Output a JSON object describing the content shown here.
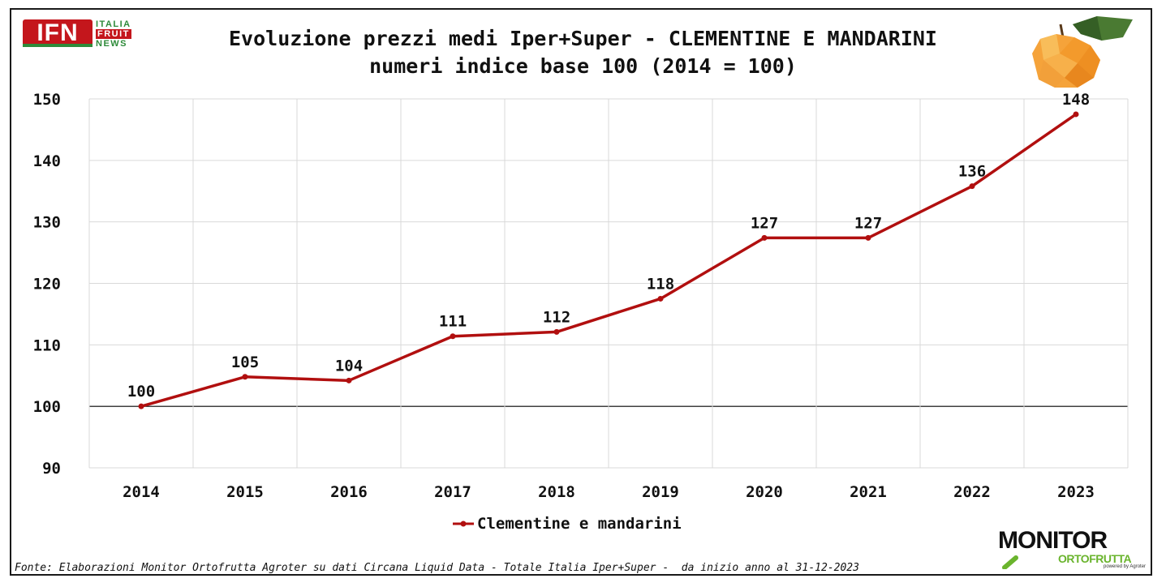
{
  "title_line1": "Evoluzione prezzi medi Iper+Super - CLEMENTINE E MANDARINI",
  "title_line2": "numeri indice base 100 (2014 = 100)",
  "logo_ifn": {
    "main": "IFN",
    "line1": "ITALIA",
    "line2": "FRUIT",
    "line3": "NEWS"
  },
  "logo_monitor": {
    "main": "MONITOR",
    "sub": "ORTOFRUTTA",
    "powered": "powered by Agroter"
  },
  "source": "Fonte: Elaborazioni Monitor Ortofrutta Agroter su dati Circana Liquid Data - Totale Italia Iper+Super -  da inizio anno al 31-12-2023",
  "colors": {
    "series": "#b10f0f",
    "grid": "#d9d9d9",
    "baseline": "#000000"
  },
  "chart_data": {
    "type": "line",
    "title": "Evoluzione prezzi medi Iper+Super - CLEMENTINE E MANDARINI",
    "subtitle": "numeri indice base 100 (2014 = 100)",
    "xlabel": "",
    "ylabel": "",
    "categories": [
      "2014",
      "2015",
      "2016",
      "2017",
      "2018",
      "2019",
      "2020",
      "2021",
      "2022",
      "2023"
    ],
    "series": [
      {
        "name": "Clementine e mandarini",
        "values": [
          100,
          104.8,
          104.2,
          111.4,
          112.1,
          117.5,
          127.4,
          127.4,
          135.8,
          147.5
        ],
        "labels": [
          "100",
          "105",
          "104",
          "111",
          "112",
          "118",
          "127",
          "127",
          "136",
          "148"
        ]
      }
    ],
    "ylim": [
      90,
      150
    ],
    "yticks": [
      "90",
      "100",
      "110",
      "120",
      "130",
      "140",
      "150"
    ],
    "grid": true,
    "legend": "bottom"
  }
}
